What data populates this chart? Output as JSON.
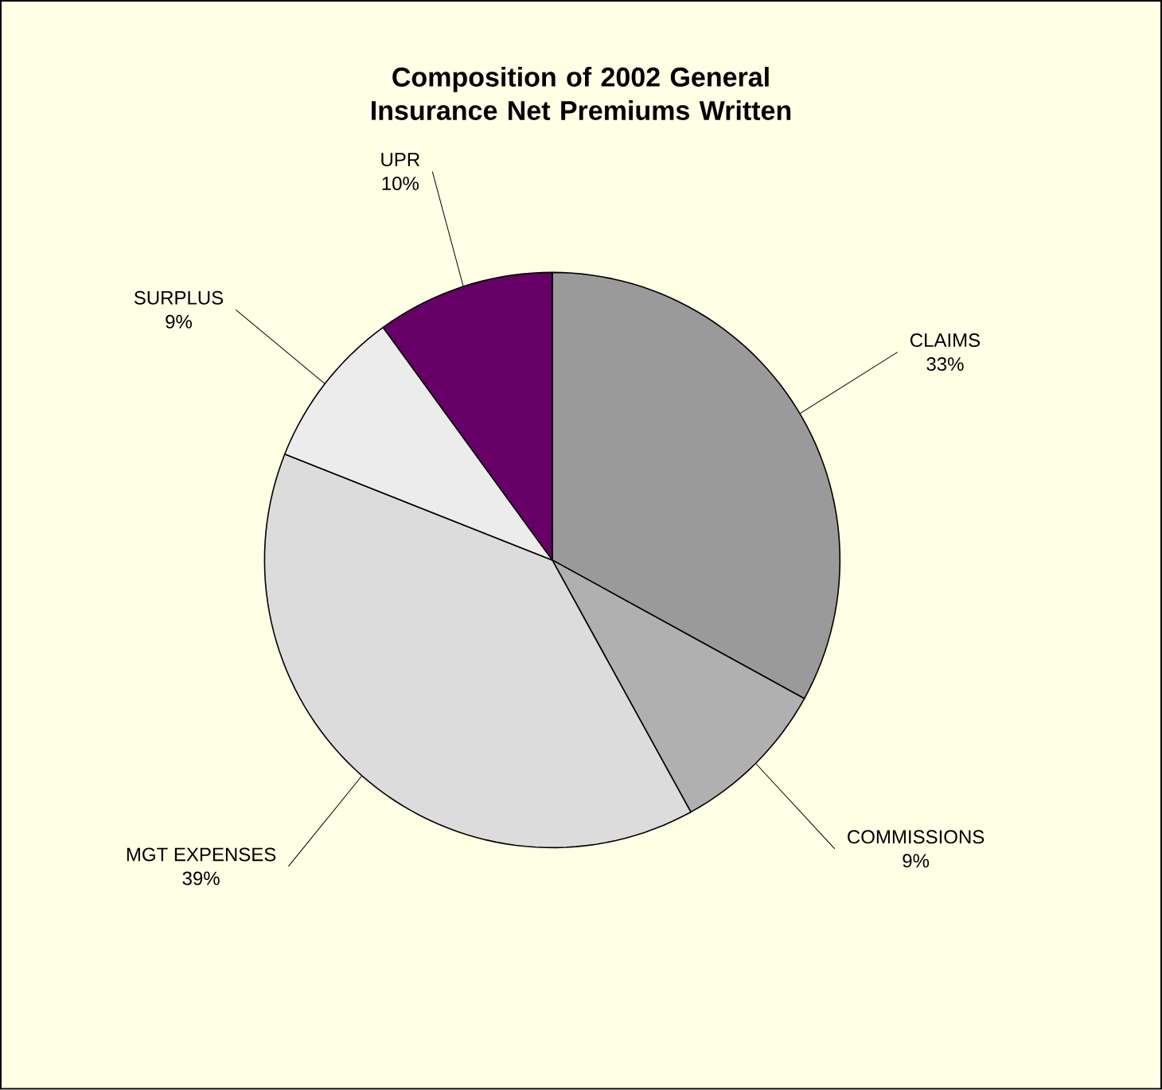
{
  "chart_data": {
    "type": "pie",
    "title": "Composition of 2002 General Insurance Net Premiums Written",
    "categories": [
      "CLAIMS",
      "COMMISSIONS",
      "MGT EXPENSES",
      "SURPLUS",
      "UPR"
    ],
    "values": [
      33,
      9,
      39,
      9,
      10
    ],
    "value_labels": [
      "33%",
      "9%",
      "39%",
      "9%",
      "10%"
    ],
    "colors": [
      "#9a9a9a",
      "#b0b0b0",
      "#dcdcdc",
      "#ececec",
      "#660066"
    ]
  }
}
